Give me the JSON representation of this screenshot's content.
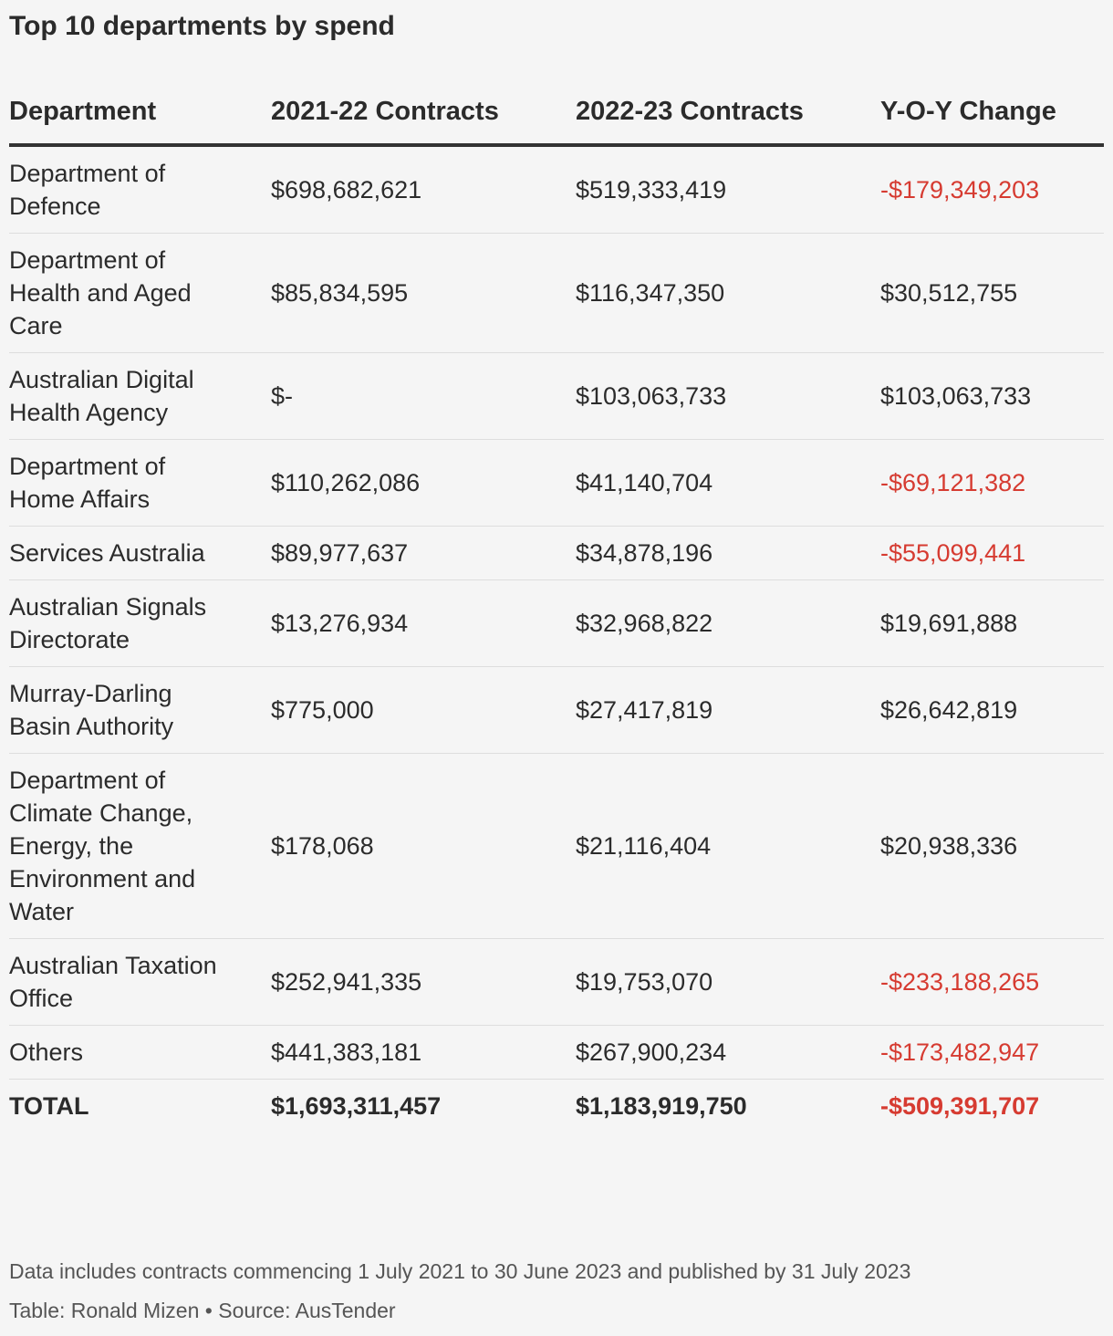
{
  "title": "Top 10 departments by spend",
  "table": {
    "header": [
      "Department",
      "2021-22 Contracts",
      "2022-23 Contracts",
      "Y-O-Y Change"
    ],
    "rows": [
      [
        "Department of Defence",
        "$698,682,621",
        "$519,333,419",
        "-$179,349,203"
      ],
      [
        "Department of Health and Aged Care",
        "$85,834,595",
        "$116,347,350",
        "$30,512,755"
      ],
      [
        "Australian Digital Health Agency",
        "$-",
        "$103,063,733",
        "$103,063,733"
      ],
      [
        "Department of Home Affairs",
        "$110,262,086",
        "$41,140,704",
        "-$69,121,382"
      ],
      [
        "Services Australia",
        "$89,977,637",
        "$34,878,196",
        "-$55,099,441"
      ],
      [
        "Australian Signals Directorate",
        "$13,276,934",
        "$32,968,822",
        "$19,691,888"
      ],
      [
        "Murray-Darling Basin Authority",
        "$775,000",
        "$27,417,819",
        "$26,642,819"
      ],
      [
        "Department of Climate Change, Energy, the Environment and Water",
        "$178,068",
        "$21,116,404",
        "$20,938,336"
      ],
      [
        "Australian Taxation Office",
        "$252,941,335",
        "$19,753,070",
        "-$233,188,265"
      ],
      [
        "Others",
        "$441,383,181",
        "$267,900,234",
        "-$173,482,947"
      ]
    ],
    "total": [
      "TOTAL",
      "$1,693,311,457",
      "$1,183,919,750",
      "-$509,391,707"
    ]
  },
  "footer": {
    "note": "Data includes contracts commencing 1 July 2021 to 30 June 2023 and published by 31 July 2023",
    "credit": "Table: Ronald Mizen • Source: AusTender"
  }
}
